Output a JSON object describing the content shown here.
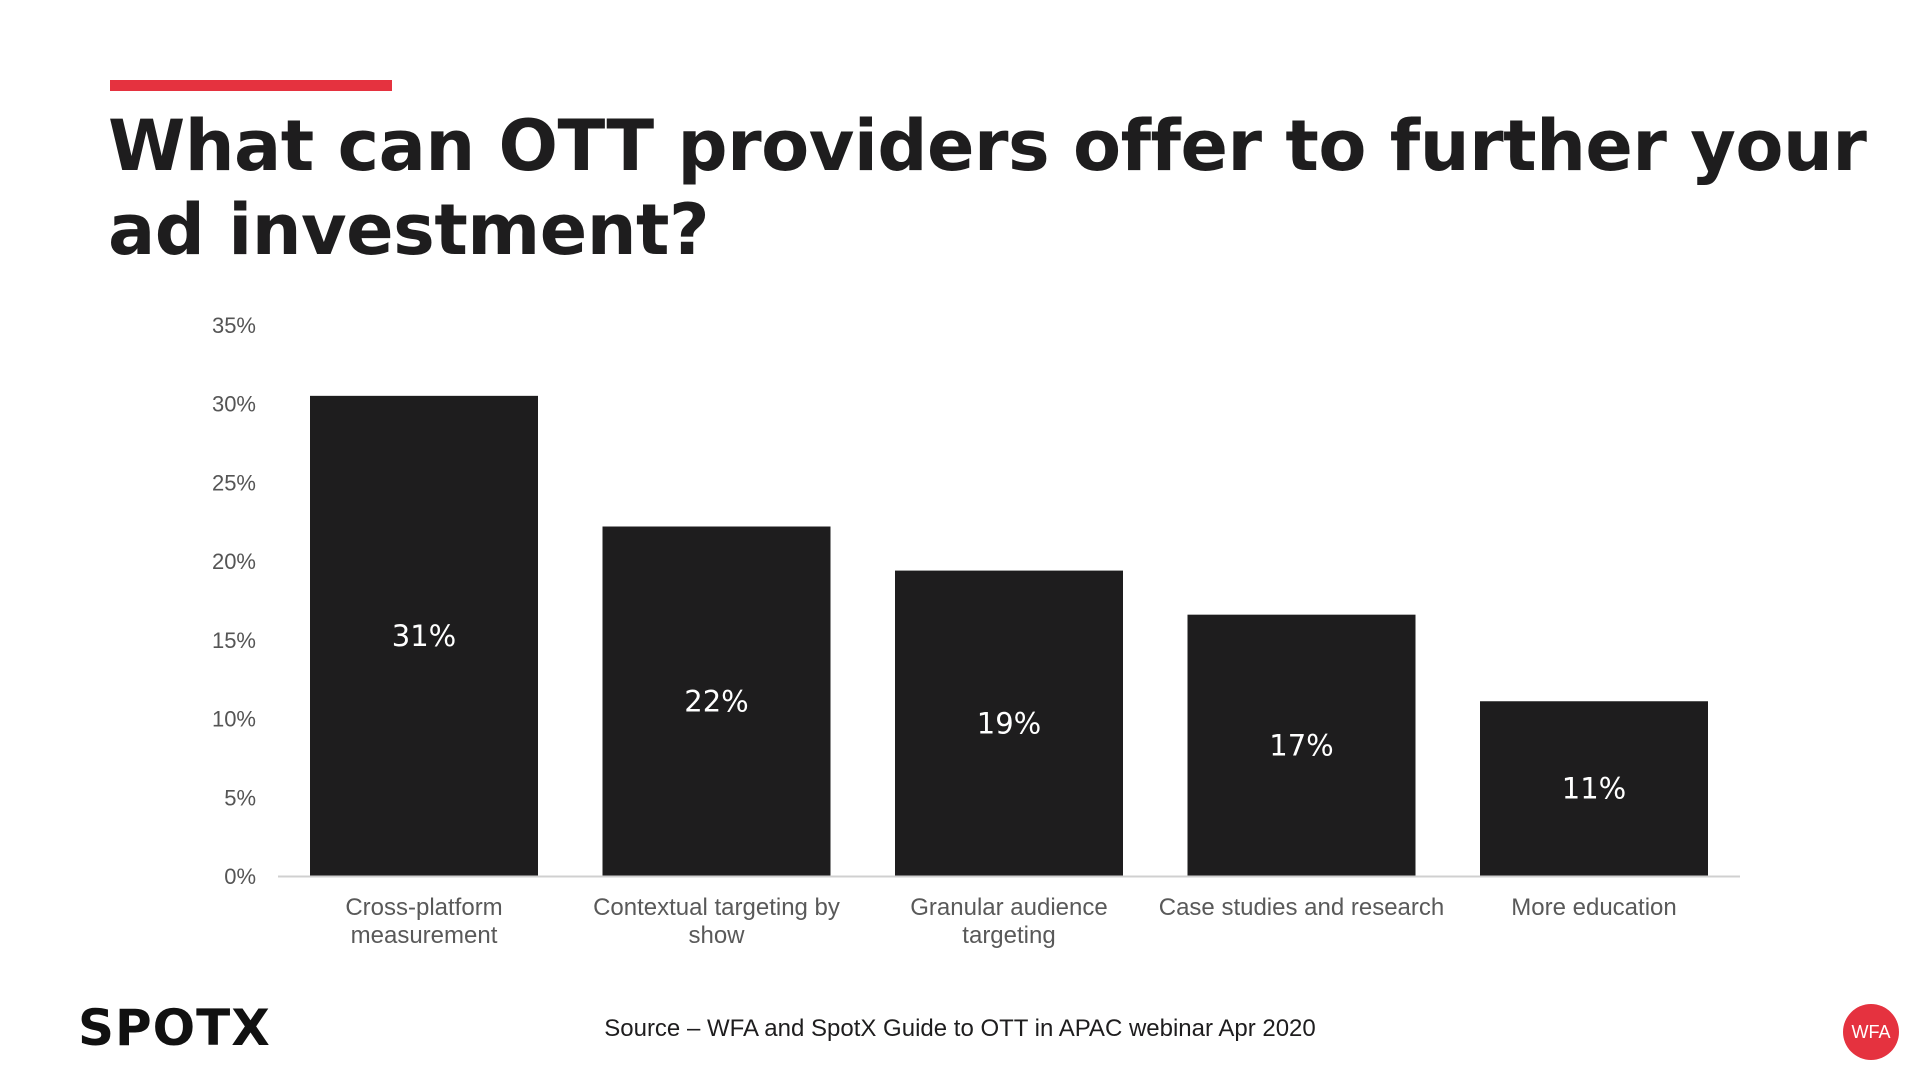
{
  "slide": {
    "title": "What can OTT providers offer to further your ad investment?",
    "source": "Source – WFA and SpotX Guide to OTT in APAC webinar Apr 2020",
    "logo_text": "SPOTX",
    "badge_text": "WFA",
    "accent_color": "#e5323f",
    "bar_color": "#1e1d1e"
  },
  "chart_data": {
    "type": "bar",
    "title": "",
    "xlabel": "",
    "ylabel": "",
    "ylim": [
      0,
      35
    ],
    "yticks": [
      "0%",
      "5%",
      "10%",
      "15%",
      "20%",
      "25%",
      "30%",
      "35%"
    ],
    "ytick_values": [
      0,
      5,
      10,
      15,
      20,
      25,
      30,
      35
    ],
    "grid": false,
    "legend": "none",
    "categories": [
      [
        "Cross-platform",
        "measurement"
      ],
      [
        "Contextual targeting by",
        "show"
      ],
      [
        "Granular audience",
        "targeting"
      ],
      [
        "Case studies and research"
      ],
      [
        "More education"
      ]
    ],
    "values": [
      30.5,
      22.2,
      19.4,
      16.6,
      11.1
    ],
    "data_labels": [
      "31%",
      "22%",
      "19%",
      "17%",
      "11%"
    ]
  }
}
